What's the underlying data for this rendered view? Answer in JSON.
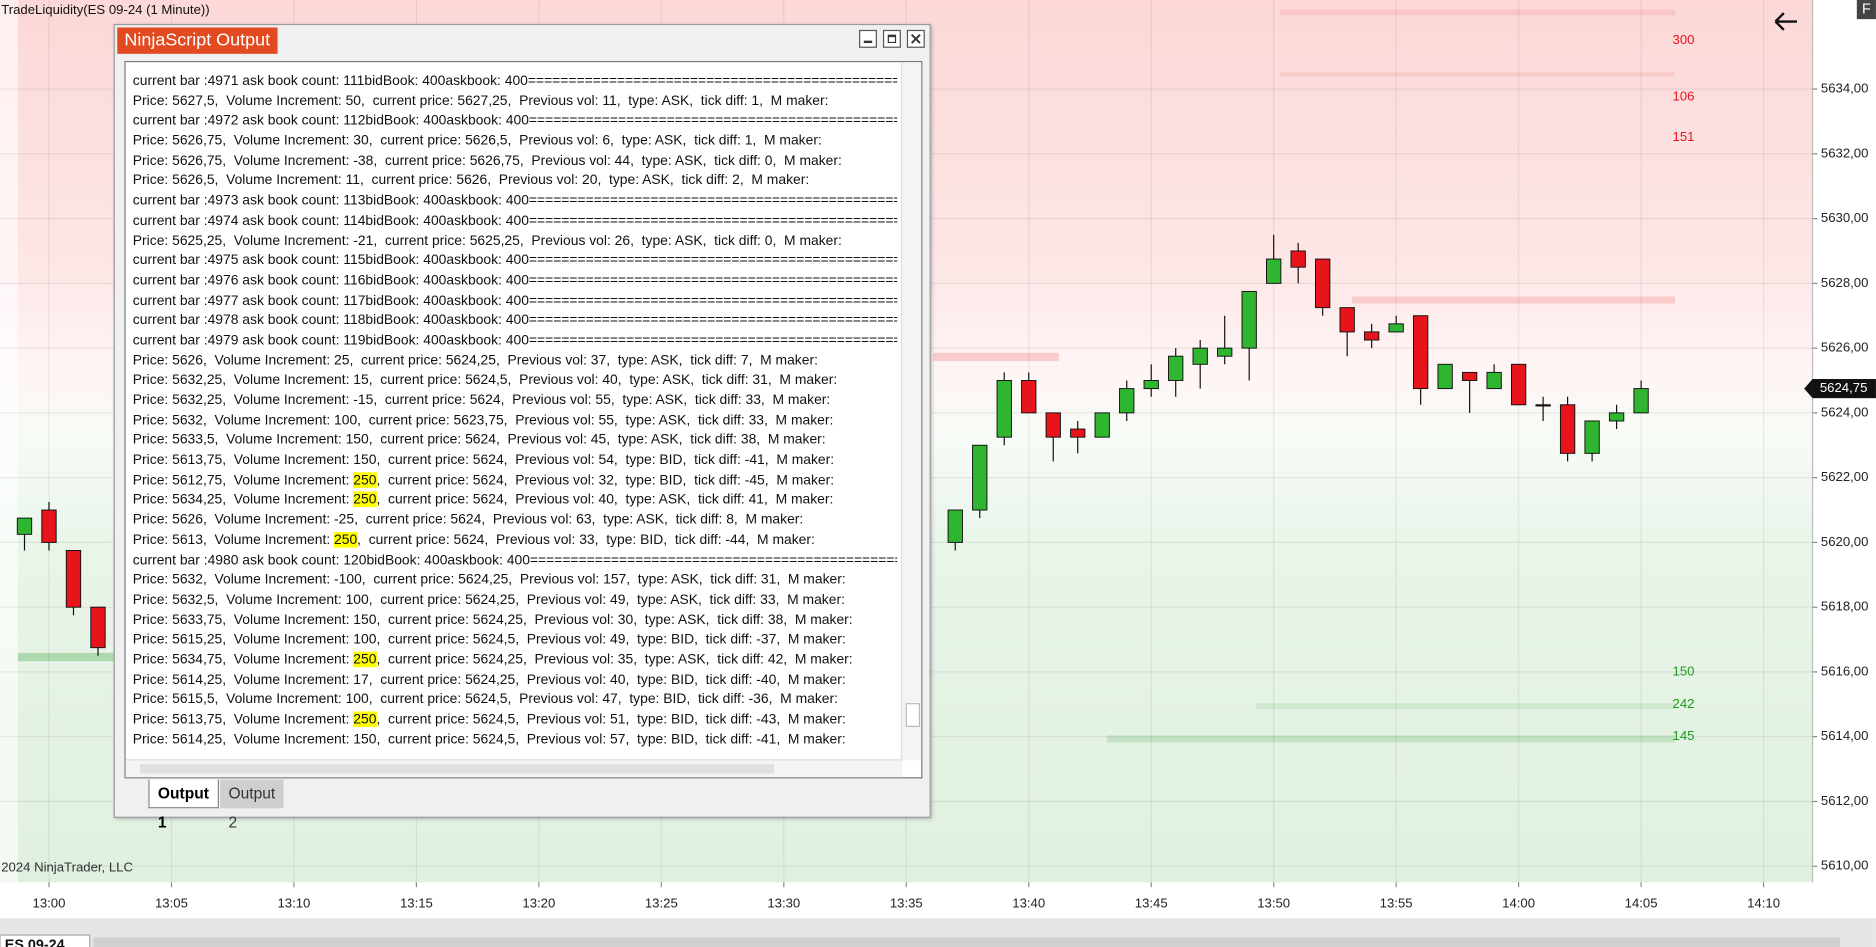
{
  "header": {
    "chart_title": "TradeLiquidity(ES 09-24 (1 Minute))",
    "corner_letter": "F",
    "copyright": "2024 NinjaTrader, LLC",
    "bottom_tab": "ES 09-24"
  },
  "chart_data": {
    "type": "candlestick",
    "x": [
      "12:59",
      "13:00",
      "13:01",
      "13:02",
      "13:37",
      "13:38",
      "13:39",
      "13:40",
      "13:41",
      "13:42",
      "13:43",
      "13:44",
      "13:45",
      "13:46",
      "13:47",
      "13:48",
      "13:49",
      "13:50",
      "13:51",
      "13:52",
      "13:53",
      "13:54",
      "13:55",
      "13:56",
      "13:57",
      "13:58",
      "13:59",
      "14:00",
      "14:01",
      "14:02",
      "14:03",
      "14:04",
      "14:05"
    ],
    "open": [
      5620.25,
      5621,
      5619.75,
      5618,
      5620,
      5621,
      5623.25,
      5625,
      5624,
      5623.5,
      5623.25,
      5624,
      5624.75,
      5625,
      5625.5,
      5625.75,
      5626,
      5628,
      5629,
      5628.75,
      5627.25,
      5626.5,
      5626.5,
      5627,
      5624.75,
      5625.25,
      5624.75,
      5625.5,
      5624.25,
      5624.25,
      5622.75,
      5623.75,
      5624
    ],
    "high": [
      5620.75,
      5621.25,
      5619.75,
      5618,
      5621,
      5623,
      5625.25,
      5625.25,
      5624,
      5623.75,
      5624,
      5625,
      5625.5,
      5626,
      5626.25,
      5627,
      5627.75,
      5629.5,
      5629.25,
      5628.75,
      5627.25,
      5626.75,
      5627,
      5627,
      5625.5,
      5625.25,
      5625.5,
      5625.5,
      5624.5,
      5624.5,
      5623.75,
      5624.25,
      5625
    ],
    "low": [
      5619.75,
      5619.75,
      5617.75,
      5616.5,
      5619.75,
      5620.75,
      5623,
      5624,
      5622.5,
      5622.75,
      5623.25,
      5623.75,
      5624.5,
      5624.5,
      5624.75,
      5625.5,
      5625,
      5628,
      5628,
      5627,
      5625.75,
      5626,
      5626.5,
      5624.25,
      5624.75,
      5624,
      5624.75,
      5624.25,
      5623.75,
      5622.5,
      5622.5,
      5623.5,
      5624
    ],
    "close": [
      5620.75,
      5620,
      5618,
      5616.75,
      5621,
      5623,
      5625,
      5624,
      5623.25,
      5623.25,
      5624,
      5624.75,
      5625,
      5625.75,
      5626,
      5626,
      5627.75,
      5628.75,
      5628.5,
      5627.25,
      5626.5,
      5626.25,
      5626.75,
      5624.75,
      5625.5,
      5625,
      5625.25,
      5624.25,
      5624.25,
      5622.75,
      5623.75,
      5624,
      5624.75
    ],
    "colors": {
      "up": "#2fb52f",
      "down": "#e8141c",
      "ask": "#e8141c",
      "bid": "#1f9a1f"
    },
    "xlim": [
      "12:58",
      "14:12"
    ],
    "xticks": [
      "13:00",
      "13:05",
      "13:10",
      "13:15",
      "13:20",
      "13:25",
      "13:30",
      "13:35",
      "13:40",
      "13:45",
      "13:50",
      "13:55",
      "14:00",
      "14:05",
      "14:10"
    ],
    "ylim": [
      5609.5,
      5636.75
    ],
    "yticks": [
      {
        "value": 5610,
        "label": "5610,00"
      },
      {
        "value": 5612,
        "label": "5612,00"
      },
      {
        "value": 5614,
        "label": "5614,00"
      },
      {
        "value": 5616,
        "label": "5616,00"
      },
      {
        "value": 5618,
        "label": "5618,00"
      },
      {
        "value": 5620,
        "label": "5620,00"
      },
      {
        "value": 5622,
        "label": "5622,00"
      },
      {
        "value": 5624,
        "label": "5624,00"
      },
      {
        "value": 5626,
        "label": "5626,00"
      },
      {
        "value": 5628,
        "label": "5628,00"
      },
      {
        "value": 5630,
        "label": "5630,00"
      },
      {
        "value": 5632,
        "label": "5632,00"
      },
      {
        "value": 5634,
        "label": "5634,00"
      }
    ],
    "last_price": {
      "value": 5624.75,
      "label": "5624,75"
    },
    "depth_labels": [
      {
        "price": 5635.5,
        "volume": 300,
        "side": "ask"
      },
      {
        "price": 5633.75,
        "volume": 106,
        "side": "ask"
      },
      {
        "price": 5632.5,
        "volume": 151,
        "side": "ask"
      },
      {
        "price": 5616,
        "volume": 150,
        "side": "bid"
      },
      {
        "price": 5615,
        "volume": 242,
        "side": "bid"
      },
      {
        "price": 5614,
        "volume": 145,
        "side": "bid"
      }
    ],
    "grid": true
  },
  "window": {
    "title": "NinjaScript Output",
    "tabs": [
      "Output 1",
      "Output 2"
    ],
    "active_tab": 0,
    "lines": [
      "current bar :4971 ask book count: 111bidBook: 400askbook: 400==============================================",
      "Price: 5627,5,  Volume Increment: 50,  current price: 5627,25,  Previous vol: 11,  type: ASK,  tick diff: 1,  M maker:",
      "current bar :4972 ask book count: 112bidBook: 400askbook: 400==============================================",
      "Price: 5626,75,  Volume Increment: 30,  current price: 5626,5,  Previous vol: 6,  type: ASK,  tick diff: 1,  M maker:",
      "Price: 5626,75,  Volume Increment: -38,  current price: 5626,75,  Previous vol: 44,  type: ASK,  tick diff: 0,  M maker:",
      "Price: 5626,5,  Volume Increment: 11,  current price: 5626,  Previous vol: 20,  type: ASK,  tick diff: 2,  M maker:",
      "current bar :4973 ask book count: 113bidBook: 400askbook: 400==============================================",
      "current bar :4974 ask book count: 114bidBook: 400askbook: 400==============================================",
      "Price: 5625,25,  Volume Increment: -21,  current price: 5625,25,  Previous vol: 26,  type: ASK,  tick diff: 0,  M maker:",
      "current bar :4975 ask book count: 115bidBook: 400askbook: 400==============================================",
      "current bar :4976 ask book count: 116bidBook: 400askbook: 400==============================================",
      "current bar :4977 ask book count: 117bidBook: 400askbook: 400==============================================",
      "current bar :4978 ask book count: 118bidBook: 400askbook: 400==============================================",
      "current bar :4979 ask book count: 119bidBook: 400askbook: 400==============================================",
      "Price: 5626,  Volume Increment: 25,  current price: 5624,25,  Previous vol: 37,  type: ASK,  tick diff: 7,  M maker:",
      "Price: 5632,25,  Volume Increment: 15,  current price: 5624,5,  Previous vol: 40,  type: ASK,  tick diff: 31,  M maker:",
      "Price: 5632,25,  Volume Increment: -15,  current price: 5624,  Previous vol: 55,  type: ASK,  tick diff: 33,  M maker:",
      "Price: 5632,  Volume Increment: 100,  current price: 5623,75,  Previous vol: 55,  type: ASK,  tick diff: 33,  M maker:",
      "Price: 5633,5,  Volume Increment: 150,  current price: 5624,  Previous vol: 45,  type: ASK,  tick diff: 38,  M maker:",
      "Price: 5613,75,  Volume Increment: 150,  current price: 5624,  Previous vol: 54,  type: BID,  tick diff: -41,  M maker:",
      [
        "Price: 5612,75,  Volume Increment: ",
        "250",
        ",  current price: 5624,  Previous vol: 32,  type: BID,  tick diff: -45,  M maker:"
      ],
      [
        "Price: 5634,25,  Volume Increment: ",
        "250",
        ",  current price: 5624,  Previous vol: 40,  type: ASK,  tick diff: 41,  M maker:"
      ],
      "Price: 5626,  Volume Increment: -25,  current price: 5624,  Previous vol: 63,  type: ASK,  tick diff: 8,  M maker:",
      [
        "Price: 5613,  Volume Increment: ",
        "250",
        ",  current price: 5624,  Previous vol: 33,  type: BID,  tick diff: -44,  M maker:"
      ],
      "current bar :4980 ask book count: 120bidBook: 400askbook: 400==============================================",
      "Price: 5632,  Volume Increment: -100,  current price: 5624,25,  Previous vol: 157,  type: ASK,  tick diff: 31,  M maker:",
      "Price: 5632,5,  Volume Increment: 100,  current price: 5624,25,  Previous vol: 49,  type: ASK,  tick diff: 33,  M maker:",
      "Price: 5633,75,  Volume Increment: 150,  current price: 5624,25,  Previous vol: 30,  type: ASK,  tick diff: 38,  M maker:",
      "Price: 5615,25,  Volume Increment: 100,  current price: 5624,5,  Previous vol: 49,  type: BID,  tick diff: -37,  M maker:",
      [
        "Price: 5634,75,  Volume Increment: ",
        "250",
        ",  current price: 5624,25,  Previous vol: 35,  type: ASK,  tick diff: 42,  M maker:"
      ],
      "Price: 5614,25,  Volume Increment: 17,  current price: 5624,25,  Previous vol: 40,  type: BID,  tick diff: -40,  M maker:",
      "Price: 5615,5,  Volume Increment: 100,  current price: 5624,5,  Previous vol: 47,  type: BID,  tick diff: -36,  M maker:",
      [
        "Price: 5613,75,  Volume Increment: ",
        "250",
        ",  current price: 5624,5,  Previous vol: 51,  type: BID,  tick diff: -43,  M maker:"
      ],
      "Price: 5614,25,  Volume Increment: 150,  current price: 5624,5,  Previous vol: 57,  type: BID,  tick diff: -41,  M maker:"
    ]
  }
}
